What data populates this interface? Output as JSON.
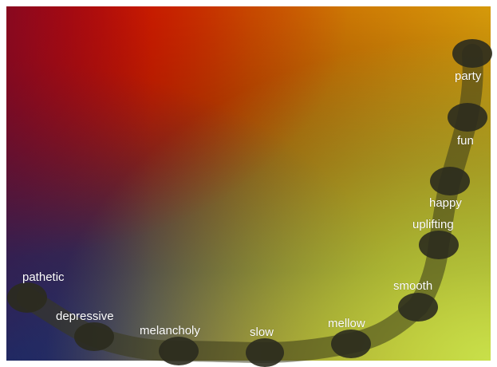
{
  "app": {
    "title": ""
  },
  "palette": {
    "corner_top_left": "#c40000",
    "corner_top_right": "#d69a0a",
    "corner_bottom_left": "#0a3a7a",
    "corner_bottom_right": "#c8e04a",
    "path_color": "#3a3a1a",
    "node_color": "#2b2b1e",
    "label_color": "#ffffff"
  },
  "moods": [
    {
      "id": "pathetic",
      "label": "pathetic"
    },
    {
      "id": "depressive",
      "label": "depressive"
    },
    {
      "id": "melancholy",
      "label": "melancholy"
    },
    {
      "id": "slow",
      "label": "slow"
    },
    {
      "id": "mellow",
      "label": "mellow"
    },
    {
      "id": "smooth",
      "label": "smooth"
    },
    {
      "id": "uplifting",
      "label": "uplifting"
    },
    {
      "id": "happy",
      "label": "happy"
    },
    {
      "id": "fun",
      "label": "fun"
    },
    {
      "id": "party",
      "label": "party"
    }
  ]
}
